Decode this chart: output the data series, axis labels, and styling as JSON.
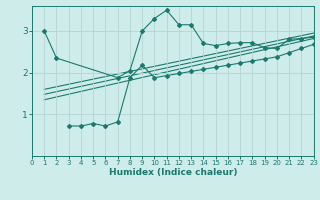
{
  "xlabel": "Humidex (Indice chaleur)",
  "xlim": [
    0,
    23
  ],
  "ylim": [
    0.0,
    3.6
  ],
  "yticks": [
    1,
    2,
    3
  ],
  "xticks": [
    0,
    1,
    2,
    3,
    4,
    5,
    6,
    7,
    8,
    9,
    10,
    11,
    12,
    13,
    14,
    15,
    16,
    17,
    18,
    19,
    20,
    21,
    22,
    23
  ],
  "bg_color": "#ceecea",
  "line_color": "#1a7a6e",
  "grid_color": "#b5d5d2",
  "line1_x": [
    1,
    2,
    7,
    8,
    9,
    10,
    11,
    12,
    13,
    14,
    15,
    16,
    17,
    18,
    19,
    20,
    21,
    22,
    23
  ],
  "line1_y": [
    3.0,
    2.35,
    1.88,
    2.05,
    3.0,
    3.3,
    3.5,
    3.15,
    3.15,
    2.7,
    2.65,
    2.7,
    2.72,
    2.72,
    2.6,
    2.58,
    2.8,
    2.82,
    2.85
  ],
  "line2_x": [
    3,
    4,
    5,
    6,
    7,
    8,
    9,
    10,
    11,
    12,
    13,
    14,
    15,
    16,
    17,
    18,
    19,
    20,
    21,
    22,
    23
  ],
  "line2_y": [
    0.72,
    0.72,
    0.78,
    0.72,
    0.82,
    1.88,
    2.18,
    1.88,
    1.93,
    1.98,
    2.03,
    2.08,
    2.13,
    2.18,
    2.23,
    2.28,
    2.33,
    2.38,
    2.48,
    2.58,
    2.68
  ],
  "line3_x": [
    1,
    23
  ],
  "line3_y": [
    1.35,
    2.82
  ],
  "line4_x": [
    1,
    23
  ],
  "line4_y": [
    1.48,
    2.88
  ],
  "line5_x": [
    1,
    23
  ],
  "line5_y": [
    1.6,
    2.95
  ]
}
